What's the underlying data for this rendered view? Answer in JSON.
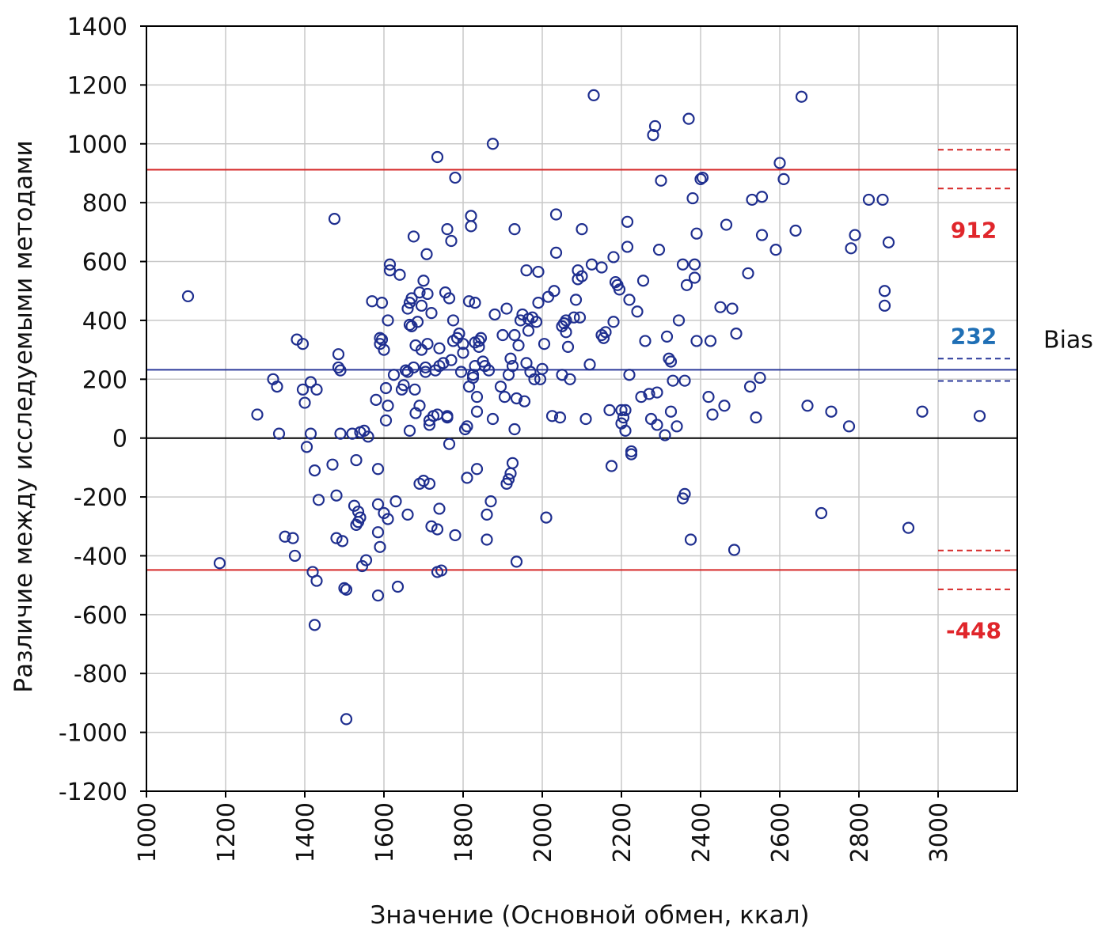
{
  "chart_data": {
    "type": "scatter",
    "title": "",
    "xlabel": "Значение (Основной обмен, ккал)",
    "ylabel": "Различие между исследуемыми методами",
    "xlim": [
      1000,
      3200
    ],
    "ylim": [
      -1200,
      1400
    ],
    "xticks": [
      1000,
      1200,
      1400,
      1600,
      1800,
      2000,
      2200,
      2400,
      2600,
      2800,
      3000
    ],
    "yticks": [
      1400,
      1200,
      1000,
      800,
      600,
      400,
      200,
      0,
      -200,
      -400,
      -600,
      -800,
      -1000,
      -1200
    ],
    "xtick_labels": [
      "1000",
      "1200",
      "1400",
      "1600",
      "1800",
      "2000",
      "2200",
      "2400",
      "2600",
      "2800",
      "3000"
    ],
    "ytick_labels": [
      "1400",
      "1200",
      "1000",
      "800",
      "600",
      "400",
      "200",
      "0",
      "-200",
      "-400",
      "-600",
      "-800",
      "-1000",
      "-1200"
    ],
    "grid": true,
    "colors": {
      "points": "#1f2f8f",
      "loa": "#d62828",
      "bias": "#2b3a9a",
      "zero": "#000000",
      "bias_text": "#1f6fb5",
      "loa_text": "#e0262b",
      "grid": "#c8c8c8"
    },
    "reference_lines": {
      "upper_loa": {
        "value": 912,
        "label": "912",
        "ci": [
          848,
          980
        ]
      },
      "bias": {
        "value": 232,
        "label": "232",
        "ci": [
          194,
          270
        ]
      },
      "lower_loa": {
        "value": -448,
        "label": "-448",
        "ci": [
          -514,
          -382
        ]
      },
      "zero": {
        "value": 0
      }
    },
    "bias_text": "Bias",
    "points": [
      [
        1105,
        482
      ],
      [
        1185,
        -425
      ],
      [
        1280,
        80
      ],
      [
        1320,
        200
      ],
      [
        1330,
        175
      ],
      [
        1335,
        15
      ],
      [
        1350,
        -335
      ],
      [
        1370,
        -340
      ],
      [
        1375,
        -400
      ],
      [
        1380,
        335
      ],
      [
        1395,
        320
      ],
      [
        1395,
        165
      ],
      [
        1400,
        120
      ],
      [
        1405,
        -30
      ],
      [
        1415,
        15
      ],
      [
        1415,
        190
      ],
      [
        1420,
        -455
      ],
      [
        1425,
        -635
      ],
      [
        1425,
        -110
      ],
      [
        1430,
        165
      ],
      [
        1430,
        -485
      ],
      [
        1435,
        -210
      ],
      [
        1470,
        -90
      ],
      [
        1475,
        745
      ],
      [
        1480,
        -195
      ],
      [
        1480,
        -340
      ],
      [
        1485,
        285
      ],
      [
        1485,
        240
      ],
      [
        1490,
        230
      ],
      [
        1490,
        15
      ],
      [
        1495,
        -350
      ],
      [
        1500,
        -510
      ],
      [
        1505,
        -955
      ],
      [
        1505,
        -515
      ],
      [
        1520,
        15
      ],
      [
        1525,
        -230
      ],
      [
        1530,
        -75
      ],
      [
        1530,
        -295
      ],
      [
        1535,
        -250
      ],
      [
        1535,
        -285
      ],
      [
        1540,
        -270
      ],
      [
        1540,
        20
      ],
      [
        1545,
        -435
      ],
      [
        1550,
        25
      ],
      [
        1555,
        -415
      ],
      [
        1560,
        5
      ],
      [
        1570,
        465
      ],
      [
        1580,
        130
      ],
      [
        1585,
        -225
      ],
      [
        1585,
        -320
      ],
      [
        1585,
        -535
      ],
      [
        1585,
        -105
      ],
      [
        1590,
        340
      ],
      [
        1590,
        320
      ],
      [
        1590,
        -370
      ],
      [
        1595,
        460
      ],
      [
        1595,
        335
      ],
      [
        1600,
        -255
      ],
      [
        1600,
        300
      ],
      [
        1605,
        170
      ],
      [
        1605,
        60
      ],
      [
        1610,
        110
      ],
      [
        1610,
        400
      ],
      [
        1610,
        -275
      ],
      [
        1615,
        590
      ],
      [
        1615,
        570
      ],
      [
        1625,
        215
      ],
      [
        1630,
        -215
      ],
      [
        1635,
        -505
      ],
      [
        1640,
        555
      ],
      [
        1645,
        165
      ],
      [
        1650,
        180
      ],
      [
        1655,
        230
      ],
      [
        1660,
        225
      ],
      [
        1660,
        -260
      ],
      [
        1660,
        440
      ],
      [
        1665,
        460
      ],
      [
        1665,
        385
      ],
      [
        1665,
        25
      ],
      [
        1670,
        380
      ],
      [
        1670,
        475
      ],
      [
        1675,
        685
      ],
      [
        1675,
        240
      ],
      [
        1678,
        165
      ],
      [
        1680,
        315
      ],
      [
        1680,
        85
      ],
      [
        1685,
        395
      ],
      [
        1690,
        -155
      ],
      [
        1690,
        110
      ],
      [
        1690,
        495
      ],
      [
        1695,
        300
      ],
      [
        1695,
        450
      ],
      [
        1700,
        -145
      ],
      [
        1700,
        535
      ],
      [
        1705,
        240
      ],
      [
        1705,
        225
      ],
      [
        1708,
        625
      ],
      [
        1710,
        490
      ],
      [
        1710,
        320
      ],
      [
        1715,
        -155
      ],
      [
        1715,
        60
      ],
      [
        1715,
        45
      ],
      [
        1720,
        -300
      ],
      [
        1720,
        425
      ],
      [
        1725,
        75
      ],
      [
        1730,
        230
      ],
      [
        1735,
        955
      ],
      [
        1735,
        -455
      ],
      [
        1735,
        -310
      ],
      [
        1735,
        80
      ],
      [
        1740,
        245
      ],
      [
        1740,
        305
      ],
      [
        1740,
        -240
      ],
      [
        1745,
        -450
      ],
      [
        1750,
        255
      ],
      [
        1755,
        495
      ],
      [
        1760,
        710
      ],
      [
        1760,
        70
      ],
      [
        1760,
        75
      ],
      [
        1765,
        -20
      ],
      [
        1765,
        475
      ],
      [
        1770,
        670
      ],
      [
        1770,
        265
      ],
      [
        1775,
        400
      ],
      [
        1775,
        330
      ],
      [
        1780,
        -330
      ],
      [
        1780,
        885
      ],
      [
        1785,
        340
      ],
      [
        1790,
        355
      ],
      [
        1795,
        225
      ],
      [
        1800,
        290
      ],
      [
        1800,
        320
      ],
      [
        1805,
        30
      ],
      [
        1810,
        40
      ],
      [
        1810,
        -135
      ],
      [
        1815,
        175
      ],
      [
        1815,
        465
      ],
      [
        1820,
        755
      ],
      [
        1820,
        720
      ],
      [
        1825,
        215
      ],
      [
        1825,
        205
      ],
      [
        1830,
        245
      ],
      [
        1830,
        325
      ],
      [
        1830,
        460
      ],
      [
        1835,
        -105
      ],
      [
        1835,
        140
      ],
      [
        1835,
        90
      ],
      [
        1840,
        330
      ],
      [
        1840,
        310
      ],
      [
        1845,
        340
      ],
      [
        1850,
        260
      ],
      [
        1855,
        245
      ],
      [
        1860,
        -260
      ],
      [
        1860,
        -345
      ],
      [
        1865,
        230
      ],
      [
        1870,
        -215
      ],
      [
        1875,
        65
      ],
      [
        1875,
        1000
      ],
      [
        1880,
        420
      ],
      [
        1895,
        175
      ],
      [
        1900,
        350
      ],
      [
        1905,
        140
      ],
      [
        1910,
        440
      ],
      [
        1910,
        -155
      ],
      [
        1915,
        215
      ],
      [
        1915,
        -140
      ],
      [
        1920,
        -120
      ],
      [
        1920,
        270
      ],
      [
        1925,
        245
      ],
      [
        1925,
        -85
      ],
      [
        1930,
        350
      ],
      [
        1930,
        30
      ],
      [
        1930,
        710
      ],
      [
        1935,
        -420
      ],
      [
        1935,
        135
      ],
      [
        1940,
        315
      ],
      [
        1945,
        400
      ],
      [
        1950,
        420
      ],
      [
        1955,
        125
      ],
      [
        1960,
        570
      ],
      [
        1960,
        255
      ],
      [
        1965,
        405
      ],
      [
        1965,
        365
      ],
      [
        1970,
        225
      ],
      [
        1975,
        410
      ],
      [
        1980,
        200
      ],
      [
        1985,
        395
      ],
      [
        1990,
        460
      ],
      [
        1990,
        565
      ],
      [
        1995,
        200
      ],
      [
        2000,
        235
      ],
      [
        2005,
        320
      ],
      [
        2010,
        -270
      ],
      [
        2015,
        480
      ],
      [
        2025,
        75
      ],
      [
        2030,
        500
      ],
      [
        2035,
        630
      ],
      [
        2035,
        760
      ],
      [
        2045,
        70
      ],
      [
        2050,
        380
      ],
      [
        2050,
        215
      ],
      [
        2055,
        390
      ],
      [
        2060,
        360
      ],
      [
        2060,
        400
      ],
      [
        2065,
        310
      ],
      [
        2070,
        200
      ],
      [
        2080,
        410
      ],
      [
        2085,
        470
      ],
      [
        2090,
        540
      ],
      [
        2090,
        570
      ],
      [
        2095,
        410
      ],
      [
        2100,
        710
      ],
      [
        2100,
        550
      ],
      [
        2110,
        65
      ],
      [
        2120,
        250
      ],
      [
        2125,
        590
      ],
      [
        2130,
        1165
      ],
      [
        2150,
        350
      ],
      [
        2150,
        580
      ],
      [
        2155,
        340
      ],
      [
        2160,
        360
      ],
      [
        2170,
        95
      ],
      [
        2175,
        -95
      ],
      [
        2180,
        395
      ],
      [
        2180,
        615
      ],
      [
        2185,
        530
      ],
      [
        2190,
        520
      ],
      [
        2195,
        505
      ],
      [
        2200,
        50
      ],
      [
        2200,
        95
      ],
      [
        2205,
        70
      ],
      [
        2210,
        95
      ],
      [
        2210,
        25
      ],
      [
        2215,
        650
      ],
      [
        2215,
        735
      ],
      [
        2220,
        470
      ],
      [
        2220,
        215
      ],
      [
        2225,
        -45
      ],
      [
        2225,
        -55
      ],
      [
        2240,
        430
      ],
      [
        2250,
        140
      ],
      [
        2255,
        535
      ],
      [
        2260,
        330
      ],
      [
        2270,
        150
      ],
      [
        2275,
        65
      ],
      [
        2280,
        1030
      ],
      [
        2285,
        1060
      ],
      [
        2290,
        45
      ],
      [
        2290,
        155
      ],
      [
        2295,
        640
      ],
      [
        2300,
        875
      ],
      [
        2310,
        10
      ],
      [
        2315,
        345
      ],
      [
        2320,
        270
      ],
      [
        2325,
        90
      ],
      [
        2325,
        260
      ],
      [
        2330,
        195
      ],
      [
        2340,
        40
      ],
      [
        2345,
        400
      ],
      [
        2355,
        -205
      ],
      [
        2355,
        590
      ],
      [
        2360,
        -190
      ],
      [
        2360,
        195
      ],
      [
        2365,
        520
      ],
      [
        2370,
        1085
      ],
      [
        2375,
        -345
      ],
      [
        2380,
        815
      ],
      [
        2385,
        590
      ],
      [
        2385,
        545
      ],
      [
        2390,
        330
      ],
      [
        2390,
        695
      ],
      [
        2400,
        880
      ],
      [
        2405,
        885
      ],
      [
        2420,
        140
      ],
      [
        2425,
        330
      ],
      [
        2430,
        80
      ],
      [
        2450,
        445
      ],
      [
        2460,
        110
      ],
      [
        2465,
        725
      ],
      [
        2480,
        440
      ],
      [
        2485,
        -380
      ],
      [
        2490,
        355
      ],
      [
        2520,
        560
      ],
      [
        2525,
        175
      ],
      [
        2530,
        810
      ],
      [
        2540,
        70
      ],
      [
        2550,
        205
      ],
      [
        2555,
        820
      ],
      [
        2555,
        690
      ],
      [
        2590,
        640
      ],
      [
        2600,
        935
      ],
      [
        2610,
        880
      ],
      [
        2640,
        705
      ],
      [
        2655,
        1160
      ],
      [
        2670,
        110
      ],
      [
        2705,
        -255
      ],
      [
        2730,
        90
      ],
      [
        2775,
        40
      ],
      [
        2780,
        645
      ],
      [
        2790,
        690
      ],
      [
        2825,
        810
      ],
      [
        2860,
        810
      ],
      [
        2865,
        500
      ],
      [
        2865,
        450
      ],
      [
        2875,
        665
      ],
      [
        2925,
        -305
      ],
      [
        2960,
        90
      ],
      [
        3105,
        75
      ]
    ]
  }
}
